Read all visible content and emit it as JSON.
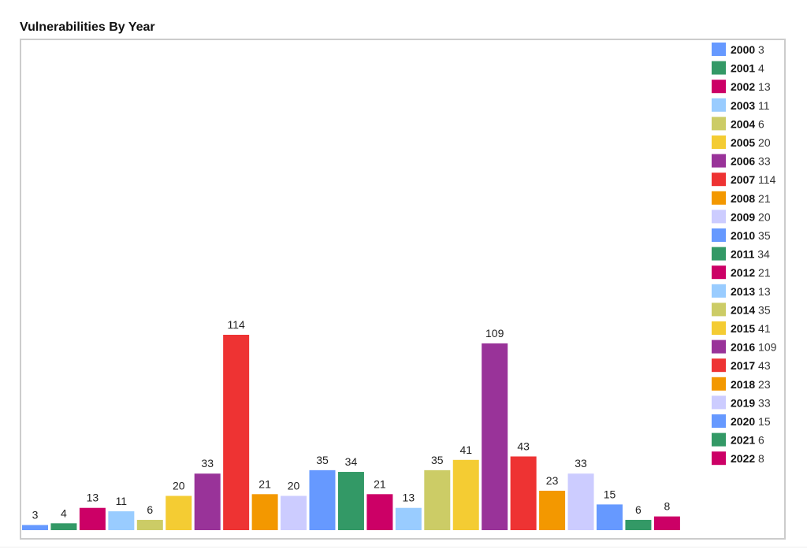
{
  "chart_data": {
    "type": "bar",
    "title": "Vulnerabilities By Year",
    "categories": [
      "2000",
      "2001",
      "2002",
      "2003",
      "2004",
      "2005",
      "2006",
      "2007",
      "2008",
      "2009",
      "2010",
      "2011",
      "2012",
      "2013",
      "2014",
      "2015",
      "2016",
      "2017",
      "2018",
      "2019",
      "2020",
      "2021",
      "2022"
    ],
    "values": [
      3,
      4,
      13,
      11,
      6,
      20,
      33,
      114,
      21,
      20,
      35,
      34,
      21,
      13,
      35,
      41,
      109,
      43,
      23,
      33,
      15,
      6,
      8
    ],
    "colors": [
      "#6699ff",
      "#339966",
      "#cc0066",
      "#99ccff",
      "#cccc66",
      "#f4cc33",
      "#993399",
      "#ee3333",
      "#f39800",
      "#ccccff",
      "#6699ff",
      "#339966",
      "#cc0066",
      "#99ccff",
      "#cccc66",
      "#f4cc33",
      "#993399",
      "#ee3333",
      "#f39800",
      "#ccccff",
      "#6699ff",
      "#339966",
      "#cc0066"
    ],
    "data_labels": true,
    "grid": false,
    "legend": "right",
    "ylim": [
      0,
      114
    ]
  }
}
